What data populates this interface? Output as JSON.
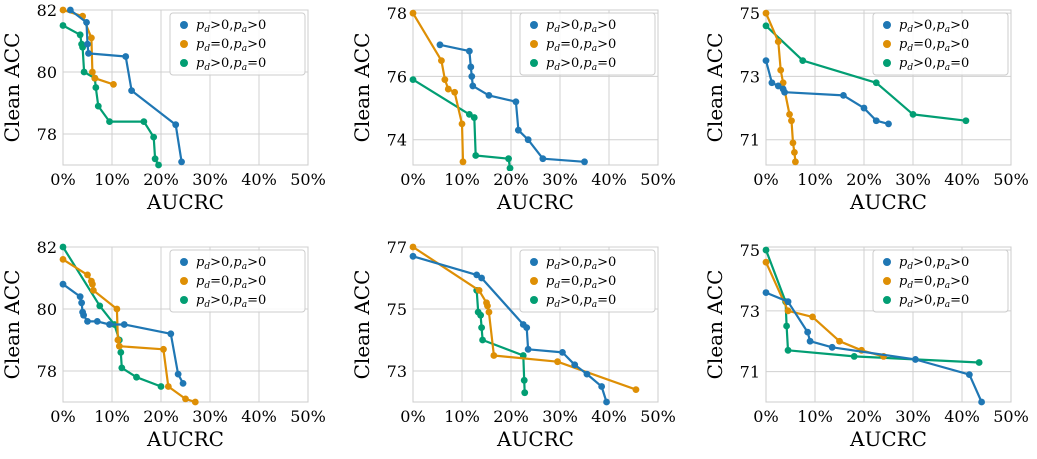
{
  "figure": {
    "legend_labels": [
      "p_d>0,p_a>0",
      "p_d=0,p_a>0",
      "p_d>0,p_a=0"
    ],
    "colors": {
      "series0": "#1f77b4",
      "series1": "#de8f05",
      "series2": "#029e73",
      "grid": "#d0d0d0",
      "axis": "#cccccc",
      "text": "#000000"
    }
  },
  "chart_data": [
    {
      "type": "line",
      "xlabel": "AUCRC",
      "ylabel": "Clean ACC",
      "xlim": [
        0,
        50
      ],
      "ylim": [
        77,
        82
      ],
      "xticks": [
        0,
        10,
        20,
        30,
        40,
        50
      ],
      "xtick_labels": [
        "0%",
        "10%",
        "20%",
        "30%",
        "40%",
        "50%"
      ],
      "yticks": [
        78,
        80,
        82
      ],
      "ytick_labels": [
        "78",
        "80",
        "82"
      ],
      "legend": "top-right",
      "grid": true,
      "series": [
        {
          "name": "p_d>0,p_a>0",
          "x": [
            1.5,
            4.8,
            5.0,
            5.2,
            12.8,
            14.0,
            23.0,
            24.2
          ],
          "y": [
            82.0,
            81.6,
            80.9,
            80.6,
            80.5,
            79.4,
            78.3,
            77.1
          ]
        },
        {
          "name": "p_d=0,p_a>0",
          "x": [
            0.0,
            4.0,
            5.8,
            6.0,
            6.5,
            10.3
          ],
          "y": [
            82.0,
            81.8,
            81.1,
            80.0,
            79.8,
            79.6
          ]
        },
        {
          "name": "p_d>0,p_a=0",
          "x": [
            0.0,
            3.5,
            3.8,
            4.0,
            4.3,
            6.5,
            6.7,
            7.2,
            9.5,
            16.5,
            18.5,
            18.8,
            19.5
          ],
          "y": [
            81.5,
            81.2,
            80.9,
            80.8,
            80.0,
            79.8,
            79.5,
            78.9,
            78.4,
            78.4,
            77.9,
            77.2,
            77.0
          ]
        }
      ]
    },
    {
      "type": "line",
      "xlabel": "AUCRC",
      "ylabel": "Clean ACC",
      "xlim": [
        0,
        50
      ],
      "ylim": [
        73.2,
        78.1
      ],
      "xticks": [
        0,
        10,
        20,
        30,
        40,
        50
      ],
      "xtick_labels": [
        "0%",
        "10%",
        "20%",
        "30%",
        "40%",
        "50%"
      ],
      "yticks": [
        74,
        76,
        78
      ],
      "ytick_labels": [
        "74",
        "76",
        "78"
      ],
      "legend": "top-right",
      "grid": true,
      "series": [
        {
          "name": "p_d>0,p_a>0",
          "x": [
            5.5,
            11.5,
            11.8,
            12.0,
            12.2,
            15.5,
            21.0,
            21.5,
            23.5,
            26.5,
            35.0
          ],
          "y": [
            77.0,
            76.8,
            76.3,
            76.0,
            75.7,
            75.4,
            75.2,
            74.3,
            74.0,
            73.4,
            73.3
          ]
        },
        {
          "name": "p_d=0,p_a>0",
          "x": [
            0.0,
            5.8,
            6.5,
            7.2,
            8.5,
            10.0,
            10.2
          ],
          "y": [
            78.0,
            76.5,
            75.9,
            75.6,
            75.5,
            74.5,
            73.3
          ]
        },
        {
          "name": "p_d>0,p_a=0",
          "x": [
            0.0,
            11.5,
            12.5,
            12.8,
            19.5,
            19.8
          ],
          "y": [
            75.9,
            74.8,
            74.7,
            73.5,
            73.4,
            73.1
          ]
        }
      ]
    },
    {
      "type": "line",
      "xlabel": "AUCRC",
      "ylabel": "Clean ACC",
      "xlim": [
        0,
        50
      ],
      "ylim": [
        70.2,
        75.1
      ],
      "xticks": [
        0,
        10,
        20,
        30,
        40,
        50
      ],
      "xtick_labels": [
        "0%",
        "10%",
        "20%",
        "30%",
        "40%",
        "50%"
      ],
      "yticks": [
        71,
        73,
        75
      ],
      "ytick_labels": [
        "71",
        "73",
        "75"
      ],
      "legend": "top-right",
      "grid": true,
      "series": [
        {
          "name": "p_d>0,p_a>0",
          "x": [
            0.0,
            1.2,
            2.5,
            3.5,
            3.8,
            15.8,
            20.0,
            22.5,
            25.0
          ],
          "y": [
            73.5,
            72.8,
            72.7,
            72.6,
            72.5,
            72.4,
            72.0,
            71.6,
            71.5
          ]
        },
        {
          "name": "p_d=0,p_a>0",
          "x": [
            0.0,
            2.5,
            3.0,
            3.5,
            4.8,
            5.2,
            5.5,
            5.8,
            6.0
          ],
          "y": [
            75.0,
            74.1,
            73.2,
            72.8,
            71.8,
            71.6,
            70.9,
            70.6,
            70.3
          ]
        },
        {
          "name": "p_d>0,p_a=0",
          "x": [
            0.0,
            7.5,
            22.5,
            30.0,
            40.8
          ],
          "y": [
            74.6,
            73.5,
            72.8,
            71.8,
            71.6
          ]
        }
      ]
    },
    {
      "type": "line",
      "xlabel": "AUCRC",
      "ylabel": "Clean ACC",
      "xlim": [
        0,
        50
      ],
      "ylim": [
        77,
        82
      ],
      "xticks": [
        0,
        10,
        20,
        30,
        40,
        50
      ],
      "xtick_labels": [
        "0%",
        "10%",
        "20%",
        "30%",
        "40%",
        "50%"
      ],
      "yticks": [
        78,
        80,
        82
      ],
      "ytick_labels": [
        "78",
        "80",
        "82"
      ],
      "legend": "top-right",
      "grid": true,
      "series": [
        {
          "name": "p_d>0,p_a>0",
          "x": [
            0.0,
            3.5,
            3.8,
            4.0,
            4.2,
            5.0,
            7.0,
            9.5,
            12.5,
            22.0,
            23.5,
            24.5
          ],
          "y": [
            80.8,
            80.4,
            80.2,
            79.9,
            79.8,
            79.6,
            79.6,
            79.5,
            79.5,
            79.2,
            77.9,
            77.6
          ]
        },
        {
          "name": "p_d=0,p_a>0",
          "x": [
            0.0,
            5.0,
            5.8,
            6.0,
            6.2,
            11.0,
            11.2,
            11.5,
            20.5,
            21.5,
            25.0,
            27.0
          ],
          "y": [
            81.6,
            81.1,
            80.9,
            80.8,
            80.6,
            80.0,
            79.0,
            78.8,
            78.7,
            77.5,
            77.1,
            77.0
          ]
        },
        {
          "name": "p_d>0,p_a=0",
          "x": [
            0.0,
            7.5,
            10.5,
            11.5,
            11.8,
            12.0,
            15.0,
            20.0
          ],
          "y": [
            82.0,
            80.1,
            79.5,
            79.0,
            78.6,
            78.1,
            77.8,
            77.5
          ]
        }
      ]
    },
    {
      "type": "line",
      "xlabel": "AUCRC",
      "ylabel": "Clean ACC",
      "xlim": [
        0,
        50
      ],
      "ylim": [
        72,
        77
      ],
      "xticks": [
        0,
        10,
        20,
        30,
        40,
        50
      ],
      "xtick_labels": [
        "0%",
        "10%",
        "20%",
        "30%",
        "40%",
        "50%"
      ],
      "yticks": [
        73,
        75,
        77
      ],
      "ytick_labels": [
        "73",
        "75",
        "77"
      ],
      "legend": "top-right",
      "grid": true,
      "series": [
        {
          "name": "p_d>0,p_a>0",
          "x": [
            0.0,
            13.0,
            14.0,
            22.5,
            23.2,
            23.5,
            30.5,
            33.0,
            35.5,
            38.5,
            39.5
          ],
          "y": [
            76.7,
            76.1,
            76.0,
            74.5,
            74.4,
            73.7,
            73.6,
            73.2,
            72.9,
            72.5,
            72.0
          ]
        },
        {
          "name": "p_d=0,p_a>0",
          "x": [
            0.0,
            13.5,
            15.0,
            15.2,
            15.5,
            16.5,
            29.5,
            45.5
          ],
          "y": [
            77.0,
            75.6,
            75.2,
            75.1,
            74.9,
            73.5,
            73.3,
            72.4
          ]
        },
        {
          "name": "p_d>0,p_a=0",
          "x": [
            13.0,
            13.3,
            13.8,
            14.0,
            14.2,
            22.5,
            22.7,
            22.8
          ],
          "y": [
            75.6,
            74.9,
            74.8,
            74.4,
            74.0,
            73.5,
            72.7,
            72.3
          ]
        }
      ]
    },
    {
      "type": "line",
      "xlabel": "AUCRC",
      "ylabel": "Clean ACC",
      "xlim": [
        0,
        50
      ],
      "ylim": [
        70,
        75.1
      ],
      "xticks": [
        0,
        10,
        20,
        30,
        40,
        50
      ],
      "xtick_labels": [
        "0%",
        "10%",
        "20%",
        "30%",
        "40%",
        "50%"
      ],
      "yticks": [
        71,
        73,
        75
      ],
      "ytick_labels": [
        "71",
        "73",
        "75"
      ],
      "legend": "top-right",
      "grid": true,
      "series": [
        {
          "name": "p_d>0,p_a>0",
          "x": [
            0.0,
            4.5,
            8.5,
            9.0,
            13.5,
            30.5,
            41.5,
            44.0
          ],
          "y": [
            73.6,
            73.3,
            72.3,
            72.0,
            71.8,
            71.4,
            70.9,
            70.0
          ]
        },
        {
          "name": "p_d=0,p_a>0",
          "x": [
            0.0,
            4.5,
            9.5,
            15.0,
            19.5,
            24.0
          ],
          "y": [
            74.6,
            73.0,
            72.8,
            72.0,
            71.7,
            71.5
          ]
        },
        {
          "name": "p_d>0,p_a=0",
          "x": [
            0.0,
            4.0,
            4.2,
            4.5,
            18.0,
            43.5
          ],
          "y": [
            75.0,
            73.3,
            72.5,
            71.7,
            71.5,
            71.3
          ]
        }
      ]
    }
  ]
}
